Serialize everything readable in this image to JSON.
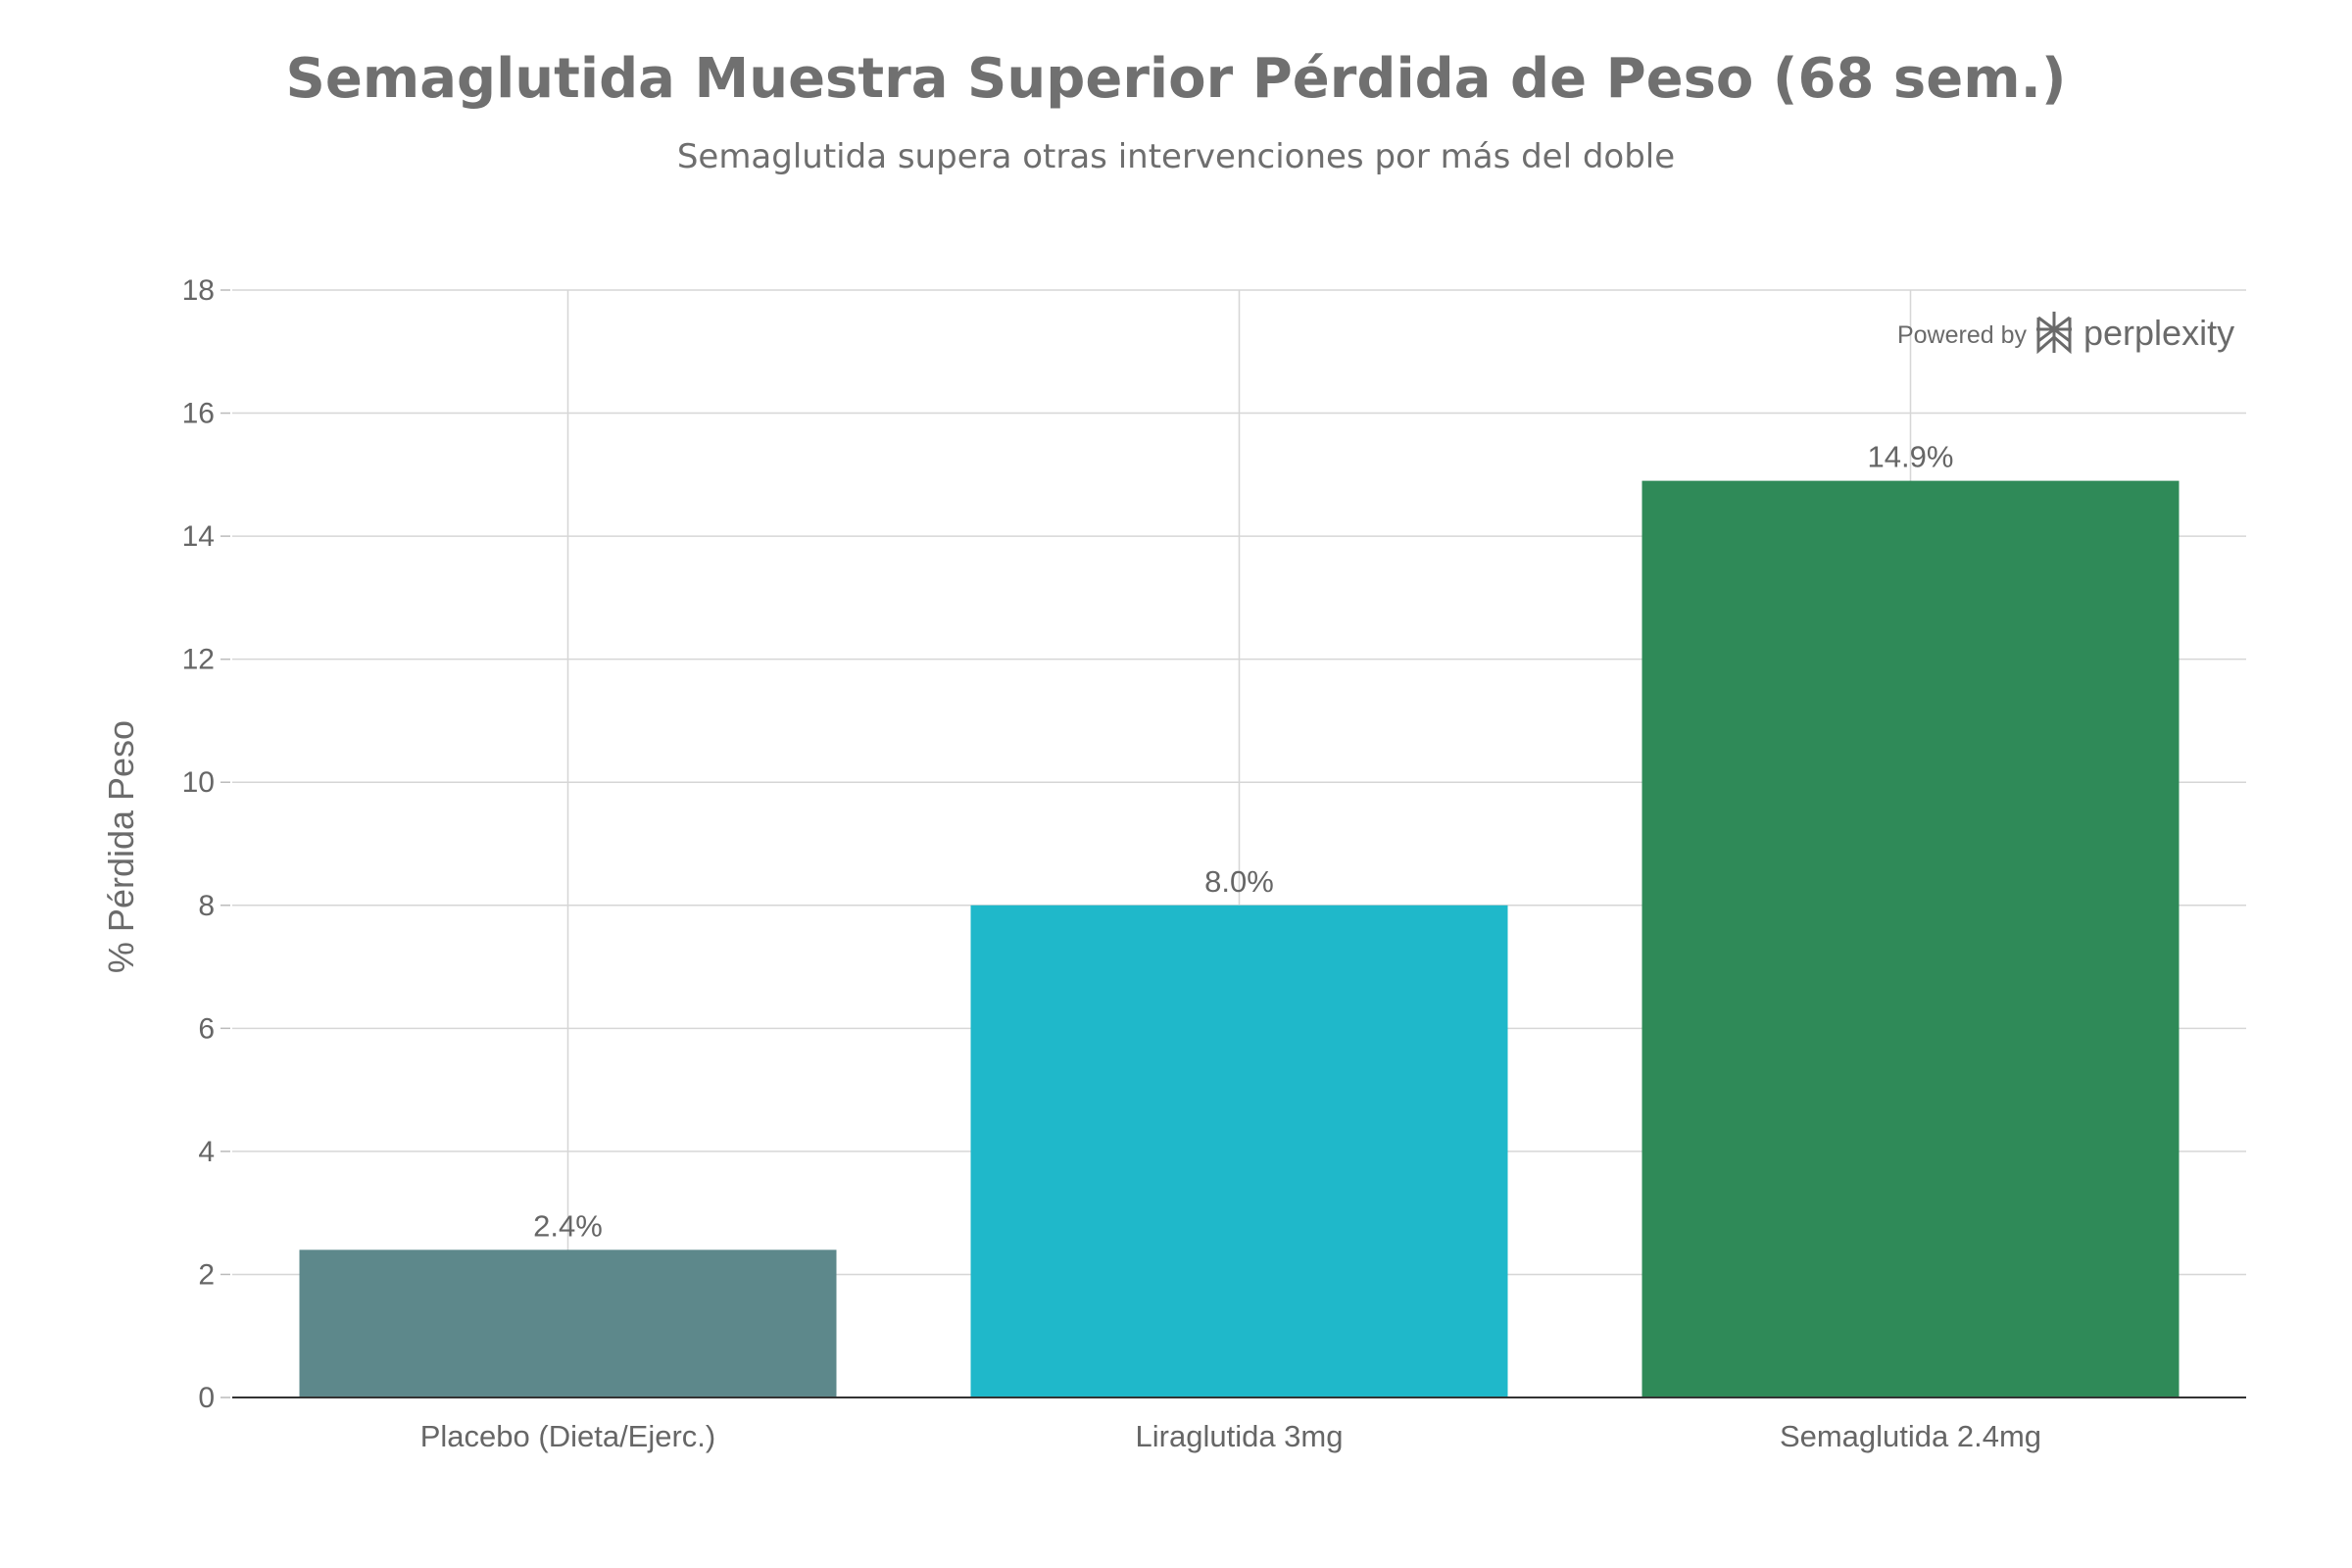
{
  "chart_data": {
    "type": "bar",
    "title": "Semaglutida Muestra Superior Pérdida de Peso (68 sem.)",
    "subtitle": "Semaglutida supera otras intervenciones por más del doble",
    "ylabel": "% Pérdida Peso",
    "xlabel": "",
    "categories": [
      "Placebo (Dieta/Ejerc.)",
      "Liraglutida 3mg",
      "Semaglutida 2.4mg"
    ],
    "values": [
      2.4,
      8.0,
      14.9
    ],
    "data_labels": [
      "2.4%",
      "8.0%",
      "14.9%"
    ],
    "colors": [
      "#5d888b",
      "#1fb8ca",
      "#2f8a58"
    ],
    "ylim": [
      0,
      18
    ],
    "yticks": [
      0,
      2,
      4,
      6,
      8,
      10,
      12,
      14,
      16,
      18
    ],
    "grid": true,
    "legend": "none"
  },
  "branding": {
    "powered_by": "Powered by",
    "brand_name": "perplexity",
    "logo_icon": "perplexity-logo-icon"
  }
}
